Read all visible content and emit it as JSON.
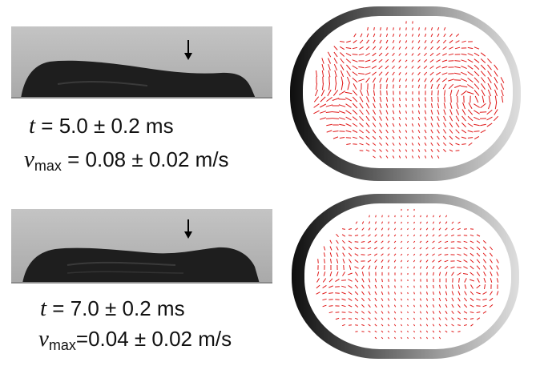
{
  "panels": [
    {
      "time_var": "t",
      "time_text": " = 5.0 ± 0.2 ms",
      "v_var": "v",
      "v_sub": "max",
      "v_text": " = 0.08 ± 0.02 m/s"
    },
    {
      "time_var": "t",
      "time_text": " = 7.0 ± 0.2 ms",
      "v_var": "v",
      "v_sub": "max",
      "v_text": "=0.04 ± 0.02 m/s"
    }
  ],
  "colors": {
    "background": "#ffffff",
    "profile_bg": "#b9b9b9",
    "droplet": "#1c1c1c",
    "vector": "#e01818",
    "rim_dark": "#111111",
    "rim_light": "#d8d8d8"
  }
}
